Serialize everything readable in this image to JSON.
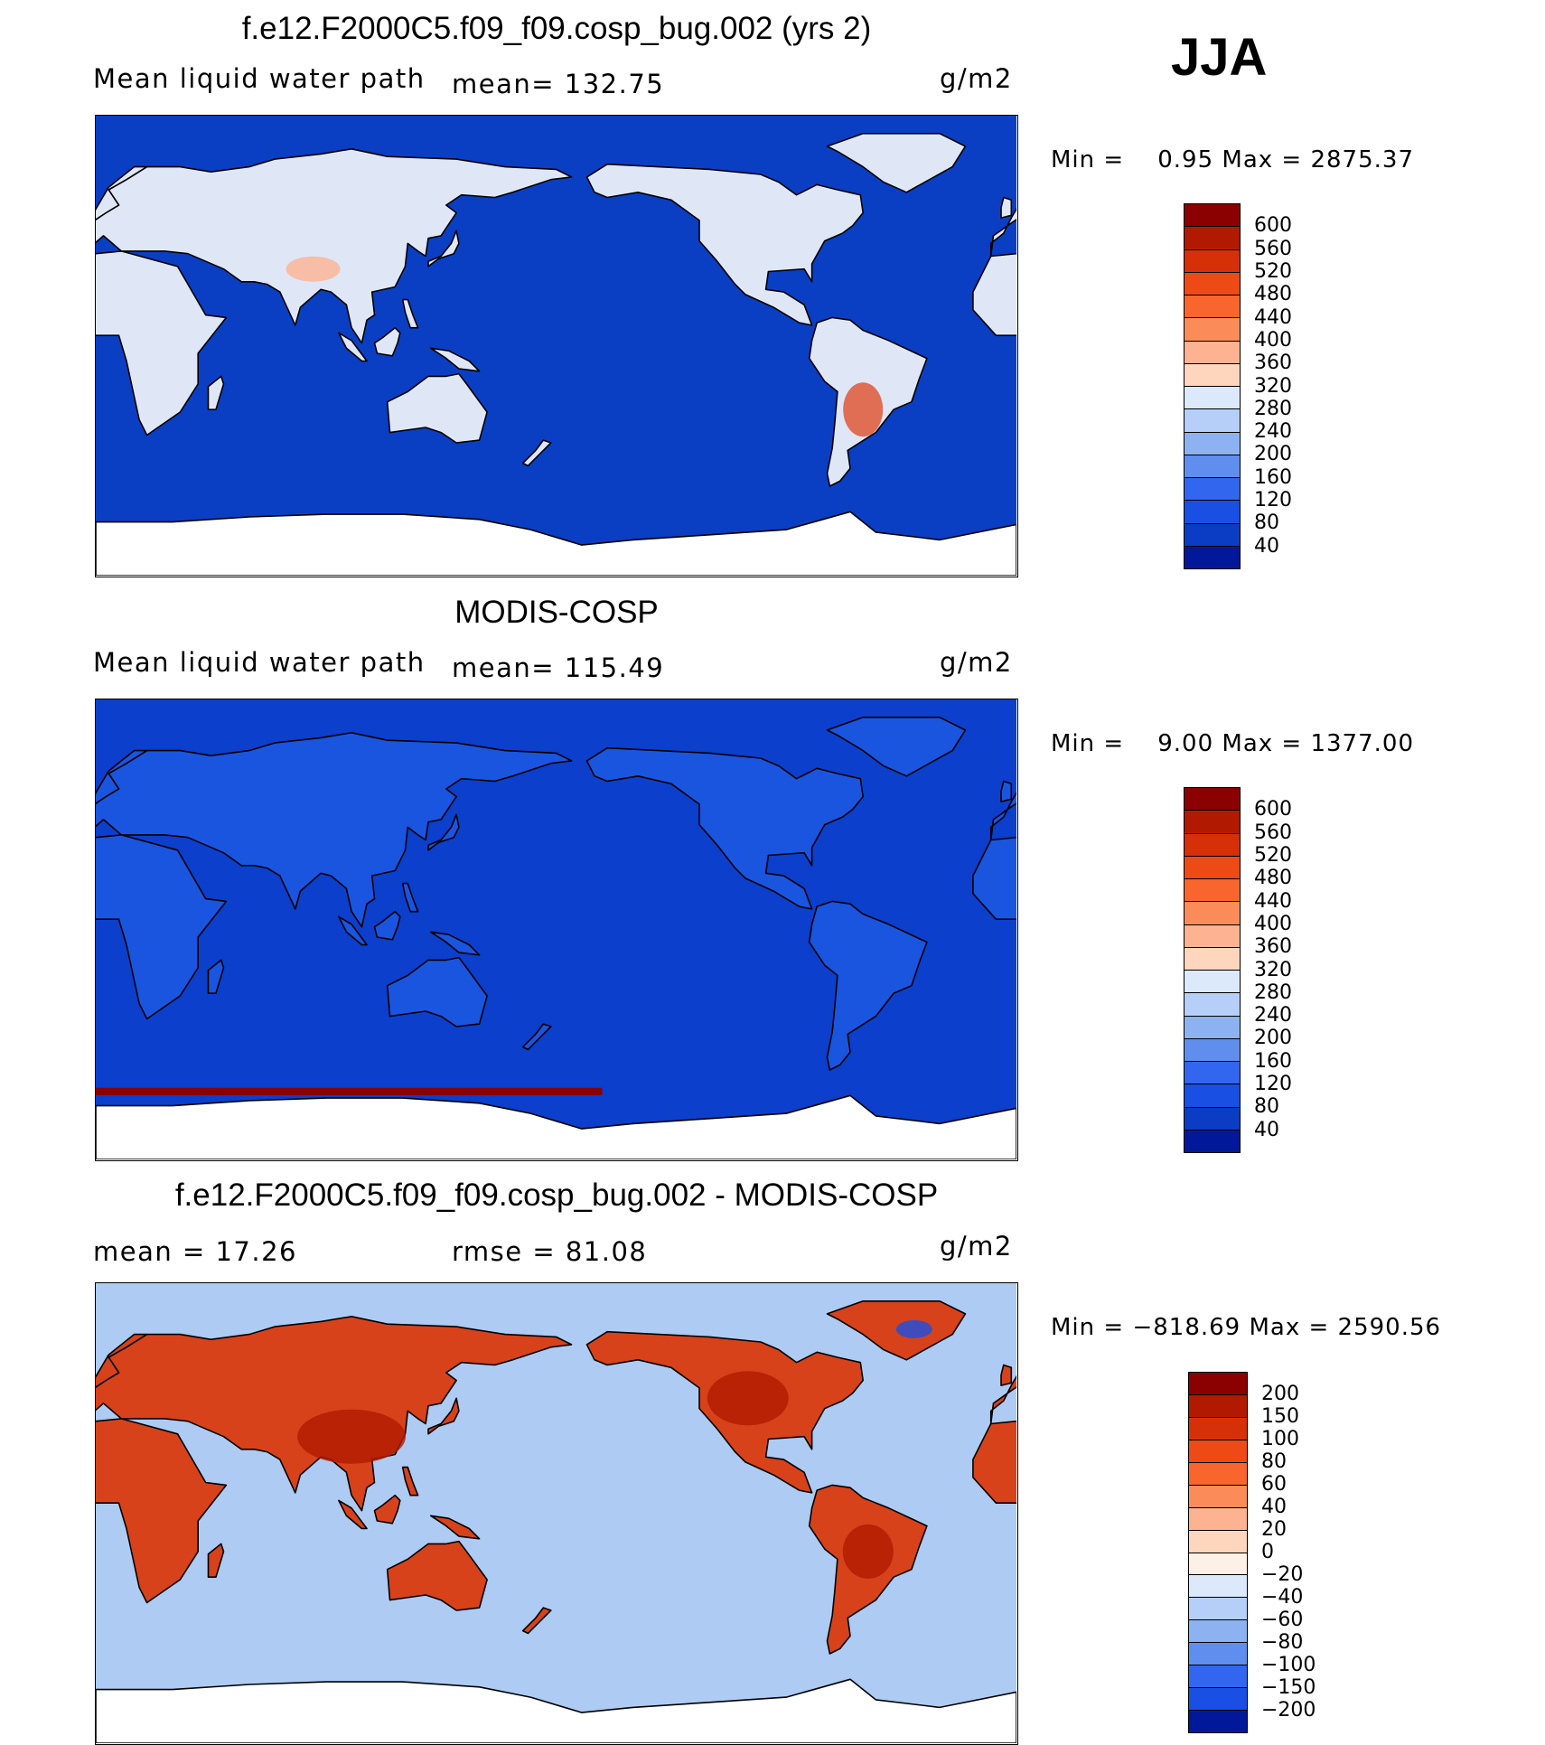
{
  "season": "JJA",
  "panels": [
    {
      "title": "f.e12.F2000C5.f09_f09.cosp_bug.002 (yrs 2)",
      "left_label": "Mean liquid water path",
      "stat_label": "mean= 132.75",
      "units": "g/m2",
      "minmax": "Min =    0.95 Max = 2875.37",
      "ocean_color": "#0a3fc4",
      "colorbar": {
        "labels": [
          "600",
          "560",
          "520",
          "480",
          "440",
          "400",
          "360",
          "320",
          "280",
          "240",
          "200",
          "160",
          "120",
          "80",
          "40"
        ],
        "colors": [
          "#8b0000",
          "#b21a00",
          "#d63008",
          "#ee4a16",
          "#f8662e",
          "#fb8c5a",
          "#fdb391",
          "#fdd6bd",
          "#dbe9fb",
          "#b5cff8",
          "#8cb2f2",
          "#5f8eee",
          "#3366ee",
          "#1a4fe3",
          "#0a3cc4",
          "#02189a"
        ]
      }
    },
    {
      "title": "MODIS-COSP",
      "left_label": "Mean liquid water path",
      "stat_label": "mean= 115.49",
      "units": "g/m2",
      "minmax": "Min =    9.00 Max = 1377.00",
      "ocean_color": "#0b3fcc",
      "colorbar": {
        "labels": [
          "600",
          "560",
          "520",
          "480",
          "440",
          "400",
          "360",
          "320",
          "280",
          "240",
          "200",
          "160",
          "120",
          "80",
          "40"
        ],
        "colors": [
          "#8b0000",
          "#b21a00",
          "#d63008",
          "#ee4a16",
          "#f8662e",
          "#fb8c5a",
          "#fdb391",
          "#fdd6bd",
          "#dbe9fb",
          "#b5cff8",
          "#8cb2f2",
          "#5f8eee",
          "#3366ee",
          "#1a4fe3",
          "#0a3cc4",
          "#02189a"
        ]
      }
    },
    {
      "title": "f.e12.F2000C5.f09_f09.cosp_bug.002 - MODIS-COSP",
      "left_label": "mean =   17.26",
      "stat_label": "rmse =   81.08",
      "units": "g/m2",
      "minmax": "Min = −818.69 Max = 2590.56",
      "ocean_color": "#aecbf3",
      "colorbar": {
        "labels": [
          "200",
          "150",
          "100",
          "80",
          "60",
          "40",
          "20",
          "0",
          "−20",
          "−40",
          "−60",
          "−80",
          "−100",
          "−150",
          "−200"
        ],
        "colors": [
          "#8b0000",
          "#b21a00",
          "#d63008",
          "#ee4a16",
          "#f8662e",
          "#fb8c5a",
          "#fdb391",
          "#fdd6bd",
          "#fdf0e6",
          "#dbe9fb",
          "#b5cff8",
          "#8cb2f2",
          "#5f8eee",
          "#3366ee",
          "#1a4fe3",
          "#02189a"
        ]
      }
    }
  ],
  "land_colors": [
    "#dfe7f7",
    "#1a55e0",
    "#d8421a"
  ]
}
